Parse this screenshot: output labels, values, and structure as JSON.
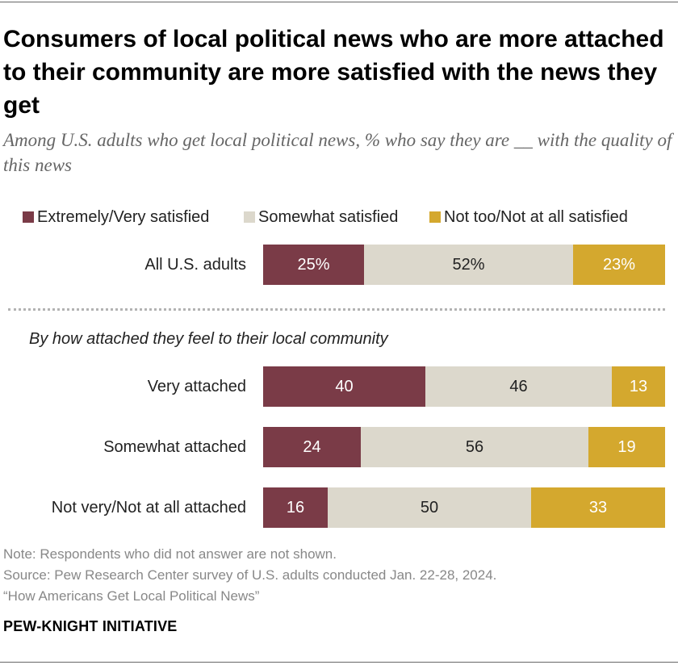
{
  "title": "Consumers of local political news who are more attached to their community are more satisfied with the news they get",
  "subtitle": "Among U.S. adults who get local political news, % who say they are __ with the quality of this news",
  "group_heading": "By how attached they feel to their local community",
  "notes": {
    "note": "Note: Respondents who did not answer are not shown.",
    "source": "Source: Pew Research Center survey of U.S. adults conducted Jan. 22-28, 2024.",
    "report": "“How Americans Get Local Political News”"
  },
  "brand": "PEW-KNIGHT INITIATIVE",
  "colors": {
    "satisfied": "#7a3b47",
    "somewhat": "#dcd8cc",
    "not_satisfied": "#d4a82e"
  },
  "chart_data": {
    "type": "bar",
    "orientation": "horizontal",
    "stacked": true,
    "title": "Consumers of local political news who are more attached to their community are more satisfied with the news they get",
    "categories": [
      "All U.S. adults",
      "Very attached",
      "Somewhat attached",
      "Not very/Not at all attached"
    ],
    "series": [
      {
        "name": "Extremely/Very satisfied",
        "values": [
          25,
          40,
          24,
          16
        ],
        "labels": [
          "25%",
          "40",
          "24",
          "16"
        ]
      },
      {
        "name": "Somewhat satisfied",
        "values": [
          52,
          46,
          56,
          50
        ],
        "labels": [
          "52%",
          "46",
          "56",
          "50"
        ]
      },
      {
        "name": "Not too/Not at all satisfied",
        "values": [
          23,
          13,
          19,
          33
        ],
        "labels": [
          "23%",
          "13",
          "19",
          "33"
        ]
      }
    ],
    "xlim": [
      0,
      100
    ],
    "legend": "top"
  }
}
